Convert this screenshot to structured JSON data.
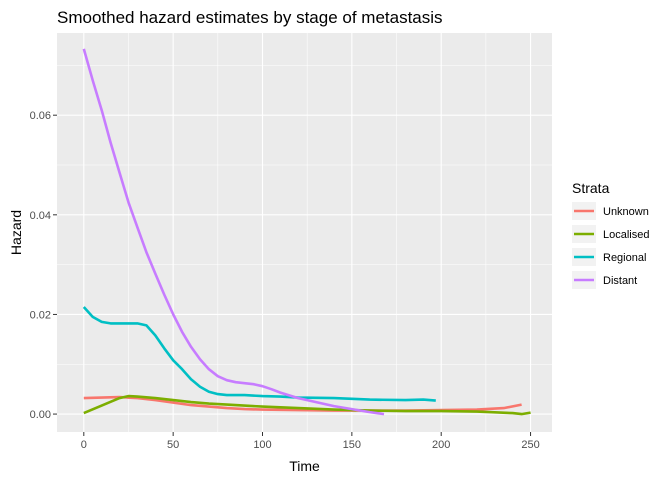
{
  "chart_data": {
    "type": "line",
    "title": "Smoothed hazard estimates by stage of metastasis",
    "xlabel": "Time",
    "ylabel": "Hazard",
    "xlim": [
      -15,
      262
    ],
    "ylim": [
      -0.0036,
      0.0765
    ],
    "xticks": [
      0,
      50,
      100,
      150,
      200,
      250
    ],
    "yticks": [
      0.0,
      0.02,
      0.04,
      0.06
    ],
    "ytick_labels": [
      "0.00",
      "0.02",
      "0.04",
      "0.06"
    ],
    "grid": true,
    "legend_title": "Strata",
    "legend_position": "right",
    "series": [
      {
        "name": "Unknown",
        "color": "#F8766D",
        "x": [
          0,
          10,
          20,
          30,
          40,
          50,
          60,
          70,
          80,
          90,
          100,
          120,
          140,
          160,
          180,
          200,
          220,
          235,
          245
        ],
        "y": [
          0.0032,
          0.0033,
          0.0034,
          0.0032,
          0.0028,
          0.0023,
          0.0018,
          0.0015,
          0.0012,
          0.001,
          0.0009,
          0.0008,
          0.0007,
          0.0007,
          0.0007,
          0.0008,
          0.0009,
          0.0012,
          0.0019
        ]
      },
      {
        "name": "Localised",
        "color": "#7CAE00",
        "x": [
          0,
          10,
          20,
          25,
          30,
          40,
          50,
          60,
          70,
          80,
          100,
          120,
          140,
          160,
          180,
          200,
          220,
          240,
          245,
          250
        ],
        "y": [
          0.0002,
          0.0017,
          0.0032,
          0.0036,
          0.0035,
          0.0032,
          0.0028,
          0.0024,
          0.0021,
          0.0019,
          0.0015,
          0.0012,
          0.0009,
          0.0007,
          0.0006,
          0.0006,
          0.0005,
          0.0002,
          0.0,
          0.0003
        ]
      },
      {
        "name": "Regional",
        "color": "#00BFC4",
        "x": [
          0,
          5,
          10,
          15,
          20,
          30,
          35,
          40,
          45,
          50,
          55,
          60,
          65,
          70,
          75,
          80,
          90,
          100,
          110,
          120,
          140,
          160,
          180,
          190,
          197
        ],
        "y": [
          0.0215,
          0.0195,
          0.0185,
          0.0182,
          0.0182,
          0.0182,
          0.0178,
          0.0158,
          0.0132,
          0.0108,
          0.009,
          0.007,
          0.0055,
          0.0045,
          0.004,
          0.0038,
          0.0038,
          0.0036,
          0.0035,
          0.0033,
          0.0032,
          0.0029,
          0.0028,
          0.0029,
          0.0027
        ]
      },
      {
        "name": "Distant",
        "color": "#C77CFF",
        "x": [
          0,
          5,
          10,
          15,
          20,
          25,
          30,
          35,
          40,
          45,
          50,
          55,
          60,
          65,
          70,
          75,
          80,
          85,
          90,
          95,
          100,
          105,
          110,
          120,
          130,
          140,
          150,
          160,
          168
        ],
        "y": [
          0.0733,
          0.067,
          0.061,
          0.0545,
          0.0485,
          0.0425,
          0.0375,
          0.0325,
          0.0282,
          0.024,
          0.02,
          0.0165,
          0.0135,
          0.011,
          0.009,
          0.0076,
          0.0068,
          0.0064,
          0.0062,
          0.006,
          0.0056,
          0.005,
          0.0043,
          0.0032,
          0.0024,
          0.0016,
          0.001,
          0.0004,
          0.0
        ]
      }
    ]
  }
}
